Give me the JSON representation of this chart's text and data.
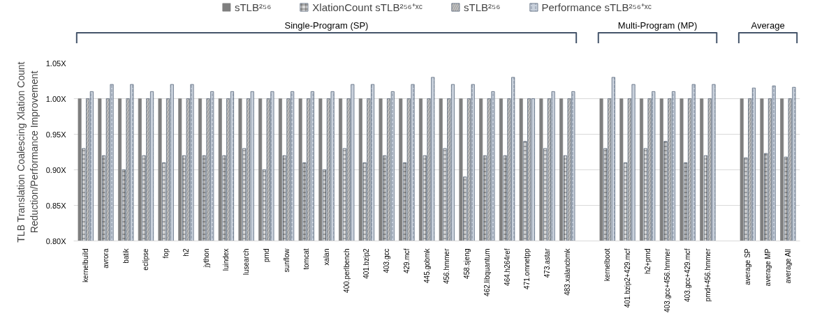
{
  "chart_data": {
    "type": "bar",
    "categories": [
      "kernelbuild",
      "avrora",
      "batik",
      "eclipse",
      "fop",
      "h2",
      "jython",
      "luindex",
      "lusearch",
      "pmd",
      "sunflow",
      "tomcat",
      "xalan",
      "400.perlbench",
      "401.bzip2",
      "403.gcc",
      "429.mcf",
      "445.gobmk",
      "456.hmmer",
      "458.sjeng",
      "462.libquantum",
      "464.h264ref",
      "471.omnetpp",
      "473.astar",
      "483.xalancbmk",
      null,
      "kernelboot",
      "401.bzip2+429.mcf",
      "h2+pmd",
      "403.gcc+456.hmmer",
      "403.gcc+429.mcf",
      "pmd+456.hmmer",
      null,
      "average SP",
      "average MP",
      "average All"
    ],
    "series": [
      {
        "name": "sTLB²⁵⁶",
        "color": "#7f7f7f",
        "values": [
          1,
          1,
          1,
          1,
          1,
          1,
          1,
          1,
          1,
          1,
          1,
          1,
          1,
          1,
          1,
          1,
          1,
          1,
          1,
          1,
          1,
          1,
          1,
          1,
          1,
          null,
          1,
          1,
          1,
          1,
          1,
          1,
          null,
          1,
          1,
          1
        ]
      },
      {
        "name": "XlationCount sTLB²⁵⁶⁺ˣᶜ",
        "color": "#d9d9d9",
        "values": [
          0.93,
          0.92,
          0.9,
          0.92,
          0.91,
          0.92,
          0.92,
          0.92,
          0.93,
          0.9,
          0.92,
          0.91,
          0.9,
          0.93,
          0.91,
          0.92,
          0.91,
          0.92,
          0.93,
          0.89,
          0.92,
          0.92,
          0.94,
          0.93,
          0.92,
          null,
          0.93,
          0.91,
          0.93,
          0.94,
          0.91,
          0.92,
          null,
          0.917,
          0.923,
          0.918
        ]
      },
      {
        "name": "sTLB²⁵⁶",
        "color": "#a6a6a6",
        "values": [
          1,
          1,
          1,
          1,
          1,
          1,
          1,
          1,
          1,
          1,
          1,
          1,
          1,
          1,
          1,
          1,
          1,
          1,
          1,
          1,
          1,
          1,
          1,
          1,
          1,
          null,
          1,
          1,
          1,
          1,
          1,
          1,
          null,
          1,
          1,
          1
        ]
      },
      {
        "name": "Performance sTLB²⁵⁶⁺ˣᶜ",
        "color": "#c9d1dc",
        "values": [
          1.01,
          1.02,
          1.02,
          1.01,
          1.02,
          1.02,
          1.01,
          1.01,
          1.01,
          1.01,
          1.01,
          1.01,
          1.01,
          1.02,
          1.02,
          1.01,
          1.02,
          1.03,
          1.02,
          1.02,
          1.01,
          1.03,
          1.0,
          1.01,
          1.01,
          null,
          1.03,
          1.02,
          1.01,
          1.01,
          1.02,
          1.02,
          null,
          1.015,
          1.018,
          1.016
        ]
      }
    ],
    "ylabel": "TLB Translation Coalescing Xlation Count\nReduction/Performance Improvement",
    "ylim": [
      0.8,
      1.05
    ],
    "yticks": [
      {
        "value": 0.8,
        "label": "0.80X"
      },
      {
        "value": 0.85,
        "label": "0.85X"
      },
      {
        "value": 0.9,
        "label": "0.90X"
      },
      {
        "value": 0.95,
        "label": "0.95X"
      },
      {
        "value": 1.0,
        "label": "1.00X"
      },
      {
        "value": 1.05,
        "label": "1.05X"
      }
    ],
    "annotations": [
      "Single-Program (SP)",
      "Multi-Program (MP)",
      "Average"
    ],
    "grid": "y",
    "legend": "top"
  }
}
